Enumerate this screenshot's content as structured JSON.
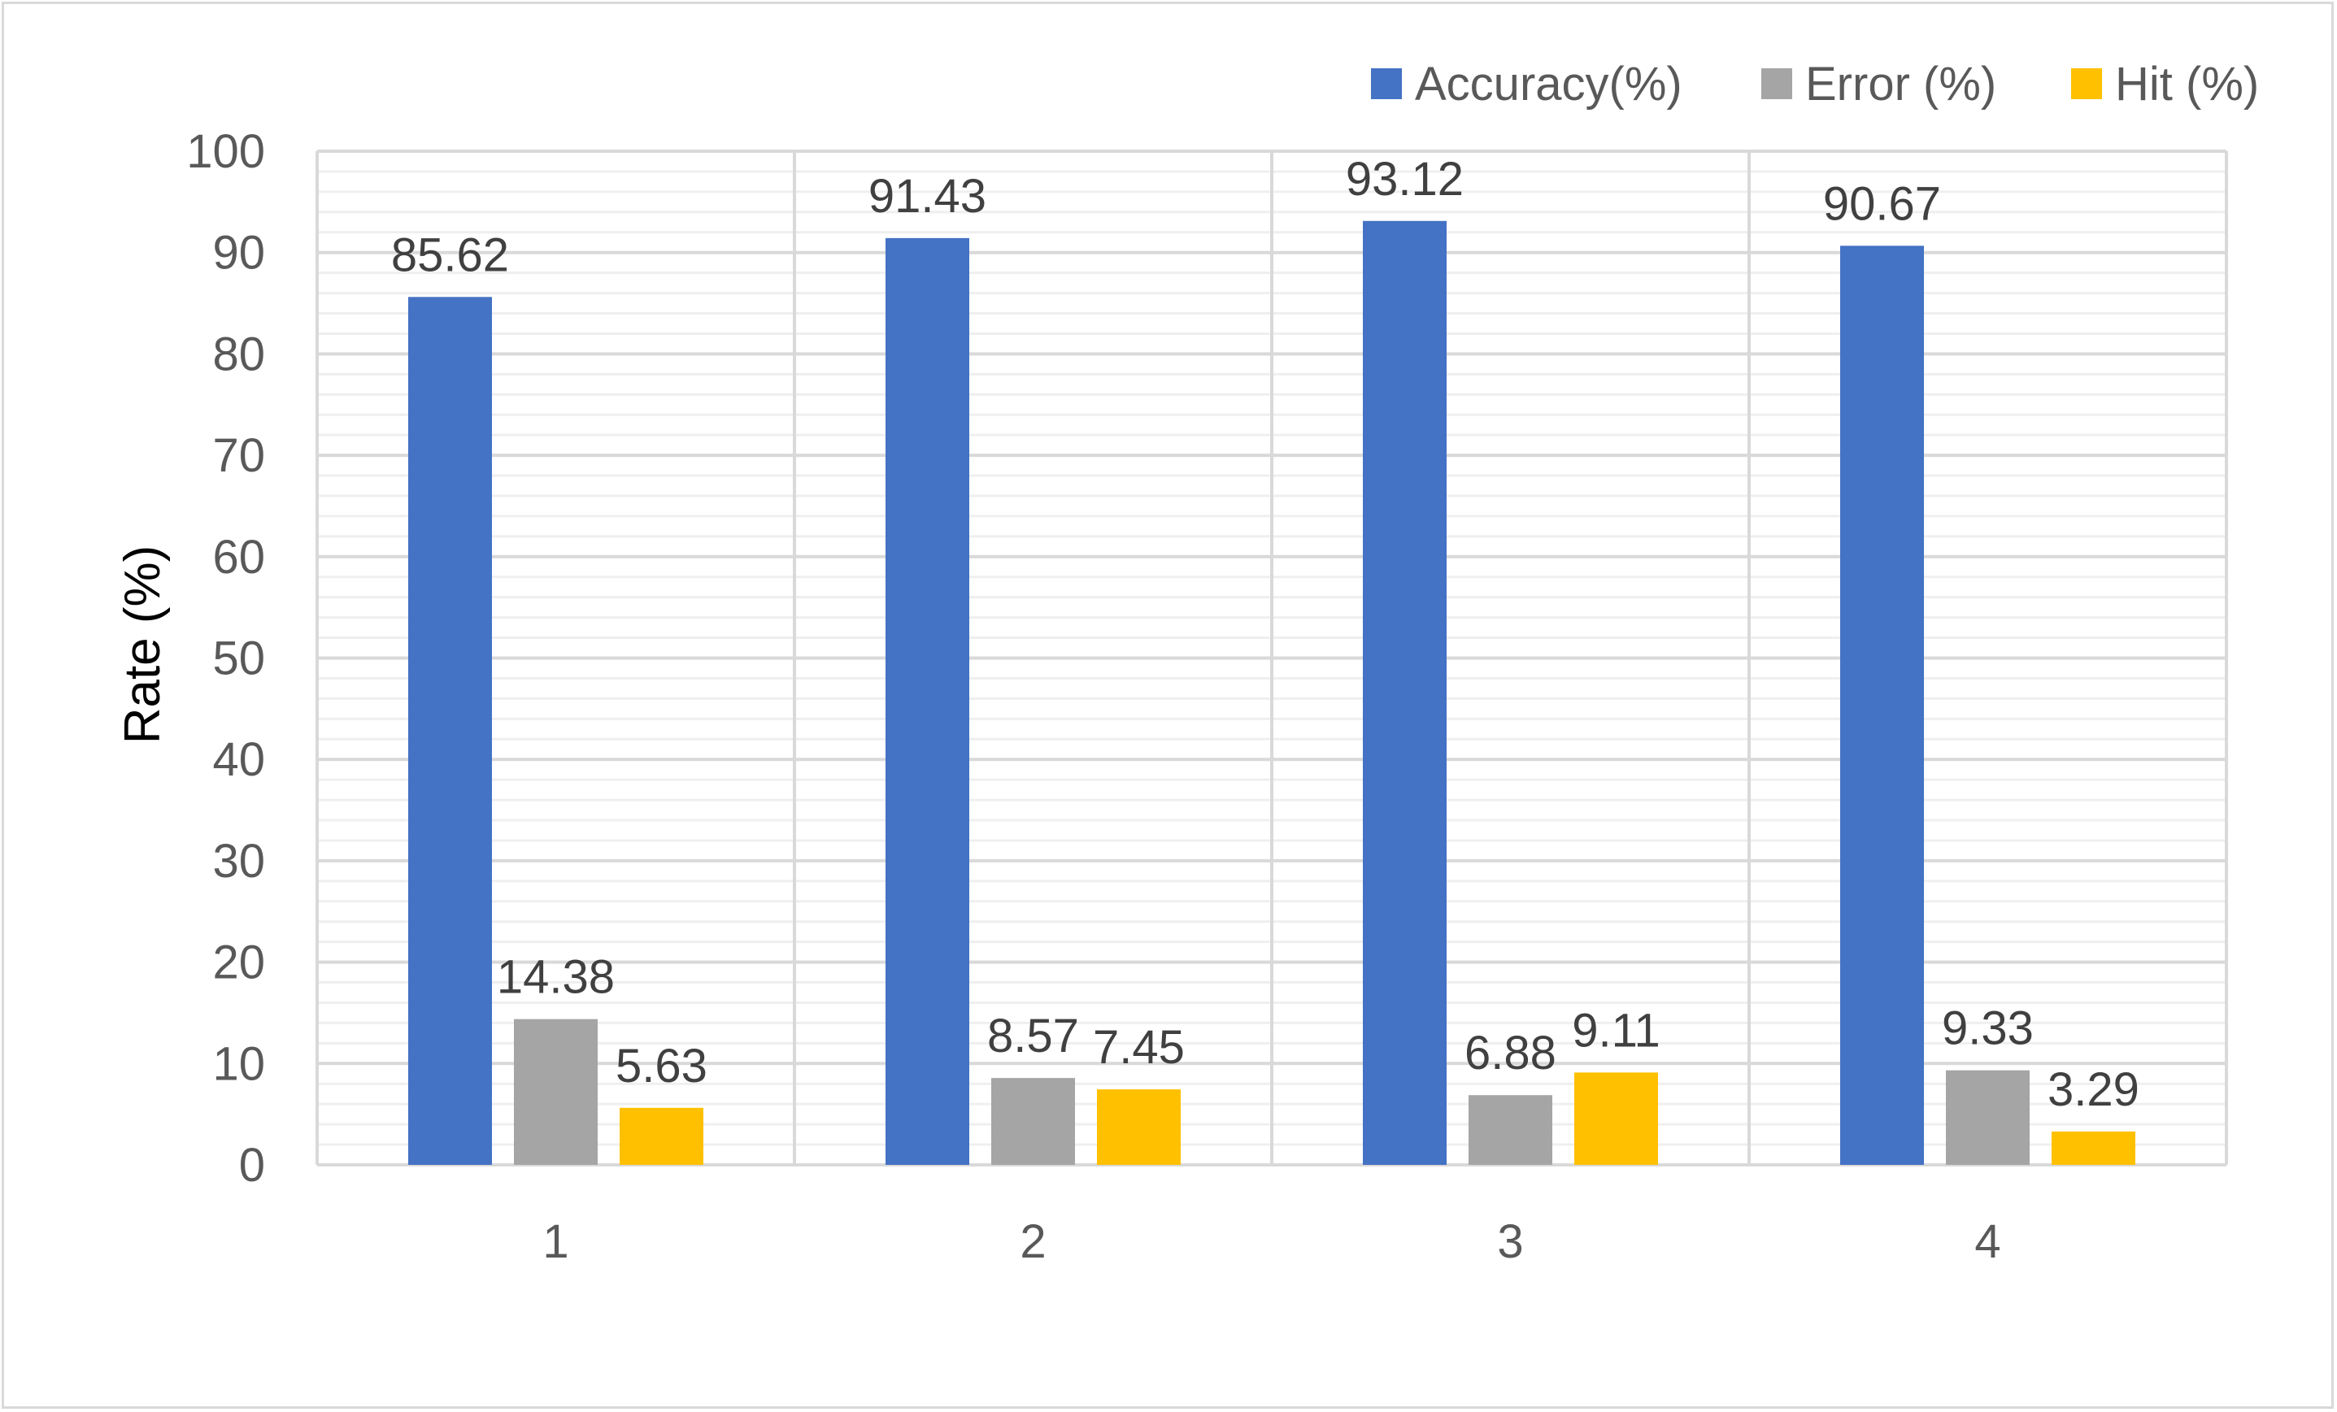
{
  "chart_data": {
    "type": "bar",
    "categories": [
      "1",
      "2",
      "3",
      "4"
    ],
    "series": [
      {
        "name": "Accuracy(%)",
        "color": "#4472c4",
        "values": [
          85.62,
          91.43,
          93.12,
          90.67
        ]
      },
      {
        "name": "Error (%)",
        "color": "#a5a5a5",
        "values": [
          14.38,
          8.57,
          6.88,
          9.33
        ]
      },
      {
        "name": "Hit (%)",
        "color": "#ffc000",
        "values": [
          5.63,
          7.45,
          9.11,
          3.29
        ]
      }
    ],
    "data_labels": [
      [
        "85.62",
        "91.43",
        "93.12",
        "90.67"
      ],
      [
        "14.38",
        "8.57",
        "6.88",
        "9.33"
      ],
      [
        "5.63",
        "7.45",
        "9.11",
        "3.29"
      ]
    ],
    "y_ticks": [
      "0",
      "10",
      "20",
      "30",
      "40",
      "50",
      "60",
      "70",
      "80",
      "90",
      "100"
    ],
    "ylabel": "Rate (%)",
    "xlabel": "",
    "title": "",
    "ylim": [
      0,
      100
    ],
    "major_gridlines": true,
    "minor_gridlines": true,
    "vertical_gridlines": true,
    "legend_position": "top-right"
  }
}
